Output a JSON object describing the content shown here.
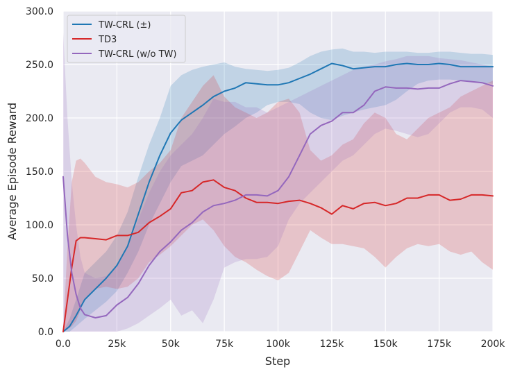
{
  "chart_data": {
    "type": "line",
    "title": "",
    "xlabel": "Step",
    "ylabel": "Average Episode Reward",
    "xlim": [
      0,
      200000
    ],
    "ylim": [
      0,
      300
    ],
    "x_ticks": [
      0,
      25000,
      50000,
      75000,
      100000,
      125000,
      150000,
      175000,
      200000
    ],
    "x_tick_labels": [
      "0.0",
      "25k",
      "50k",
      "75k",
      "100k",
      "125k",
      "150k",
      "175k",
      "200k"
    ],
    "y_ticks": [
      0,
      50,
      100,
      150,
      200,
      250,
      300
    ],
    "y_tick_labels": [
      "0.0",
      "50.0",
      "100.0",
      "150.0",
      "200.0",
      "250.0",
      "300.0"
    ],
    "grid": true,
    "legend_position": "top-left",
    "series": [
      {
        "name": "TW-CRL (±)",
        "color": "#1f77b4",
        "x": [
          0,
          3000,
          6000,
          10000,
          15000,
          20000,
          25000,
          30000,
          35000,
          40000,
          45000,
          50000,
          55000,
          60000,
          65000,
          70000,
          75000,
          80000,
          85000,
          90000,
          95000,
          100000,
          105000,
          110000,
          115000,
          120000,
          125000,
          130000,
          135000,
          140000,
          145000,
          150000,
          155000,
          160000,
          165000,
          170000,
          175000,
          180000,
          185000,
          190000,
          195000,
          200000
        ],
        "mean": [
          0,
          5,
          15,
          30,
          40,
          50,
          62,
          80,
          110,
          140,
          165,
          186,
          198,
          205,
          212,
          220,
          225,
          228,
          233,
          232,
          231,
          231,
          233,
          237,
          241,
          246,
          251,
          249,
          246,
          247,
          248,
          248,
          250,
          251,
          250,
          250,
          251,
          250,
          248,
          248,
          248,
          248
        ],
        "lower": [
          0,
          0,
          5,
          12,
          20,
          28,
          38,
          55,
          75,
          100,
          120,
          140,
          155,
          160,
          165,
          175,
          185,
          192,
          200,
          205,
          212,
          215,
          215,
          213,
          205,
          200,
          198,
          202,
          205,
          208,
          210,
          212,
          217,
          225,
          232,
          235,
          236,
          236,
          235,
          234,
          233,
          232
        ],
        "upper": [
          0,
          12,
          30,
          55,
          65,
          75,
          90,
          112,
          145,
          175,
          200,
          230,
          240,
          245,
          248,
          250,
          252,
          248,
          246,
          245,
          244,
          245,
          247,
          252,
          258,
          262,
          264,
          265,
          262,
          262,
          261,
          262,
          262,
          262,
          261,
          261,
          262,
          262,
          261,
          260,
          260,
          259
        ]
      },
      {
        "name": "TD3",
        "color": "#d62728",
        "x": [
          0,
          2000,
          4000,
          6000,
          8000,
          10000,
          15000,
          20000,
          25000,
          30000,
          35000,
          40000,
          45000,
          50000,
          55000,
          60000,
          65000,
          70000,
          75000,
          80000,
          85000,
          90000,
          95000,
          100000,
          105000,
          110000,
          115000,
          120000,
          125000,
          130000,
          135000,
          140000,
          145000,
          150000,
          155000,
          160000,
          165000,
          170000,
          175000,
          180000,
          185000,
          190000,
          195000,
          200000
        ],
        "mean": [
          0,
          30,
          60,
          85,
          88,
          88,
          87,
          86,
          90,
          90,
          93,
          102,
          108,
          115,
          130,
          132,
          140,
          142,
          135,
          132,
          125,
          121,
          121,
          120,
          122,
          123,
          120,
          116,
          110,
          118,
          115,
          120,
          121,
          118,
          120,
          125,
          125,
          128,
          128,
          123,
          124,
          128,
          128,
          127
        ],
        "lower": [
          0,
          2,
          5,
          10,
          20,
          30,
          40,
          42,
          40,
          42,
          50,
          65,
          72,
          80,
          90,
          100,
          105,
          95,
          80,
          70,
          65,
          58,
          52,
          48,
          55,
          75,
          95,
          88,
          82,
          82,
          80,
          78,
          70,
          60,
          70,
          78,
          82,
          80,
          82,
          75,
          72,
          75,
          65,
          58
        ],
        "upper": [
          0,
          80,
          140,
          160,
          162,
          158,
          145,
          140,
          138,
          135,
          140,
          150,
          158,
          170,
          200,
          215,
          230,
          240,
          220,
          210,
          205,
          200,
          205,
          215,
          218,
          205,
          170,
          160,
          165,
          175,
          180,
          195,
          205,
          200,
          185,
          180,
          190,
          200,
          205,
          210,
          220,
          225,
          230,
          235
        ]
      },
      {
        "name": "TW-CRL (w/o TW)",
        "color": "#9467bd",
        "x": [
          0,
          2000,
          4000,
          6000,
          8000,
          10000,
          15000,
          20000,
          25000,
          30000,
          35000,
          40000,
          45000,
          50000,
          55000,
          60000,
          65000,
          70000,
          75000,
          80000,
          85000,
          90000,
          95000,
          100000,
          105000,
          110000,
          115000,
          120000,
          125000,
          130000,
          135000,
          140000,
          145000,
          150000,
          155000,
          160000,
          165000,
          170000,
          175000,
          180000,
          185000,
          190000,
          195000,
          200000
        ],
        "mean": [
          145,
          90,
          55,
          35,
          22,
          16,
          13,
          15,
          25,
          32,
          45,
          62,
          75,
          84,
          95,
          102,
          112,
          118,
          120,
          123,
          128,
          128,
          127,
          132,
          145,
          165,
          185,
          193,
          197,
          205,
          205,
          212,
          225,
          229,
          228,
          228,
          227,
          228,
          228,
          232,
          235,
          234,
          233,
          230
        ],
        "lower": [
          0,
          0,
          0,
          0,
          0,
          0,
          0,
          0,
          0,
          3,
          8,
          15,
          22,
          30,
          15,
          20,
          8,
          30,
          60,
          65,
          68,
          68,
          70,
          80,
          105,
          120,
          130,
          140,
          150,
          160,
          165,
          175,
          185,
          190,
          188,
          185,
          182,
          185,
          195,
          205,
          210,
          210,
          208,
          200
        ],
        "upper": [
          280,
          200,
          140,
          100,
          70,
          55,
          50,
          52,
          62,
          80,
          105,
          130,
          150,
          165,
          175,
          185,
          200,
          218,
          215,
          215,
          210,
          210,
          205,
          210,
          215,
          220,
          225,
          230,
          235,
          240,
          245,
          248,
          250,
          253,
          255,
          258,
          258,
          258,
          256,
          255,
          254,
          252,
          250,
          248
        ]
      }
    ]
  }
}
